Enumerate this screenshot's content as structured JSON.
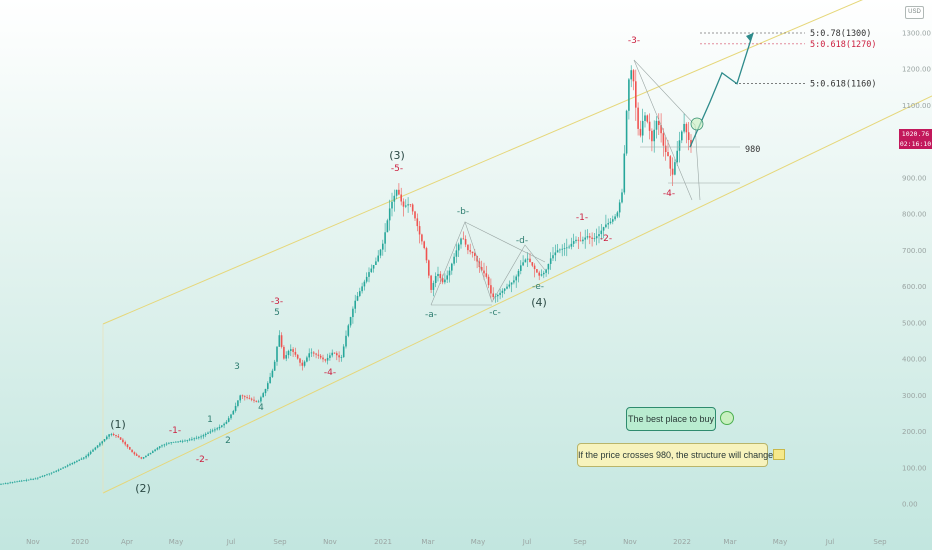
{
  "chart_data": {
    "type": "candlestick",
    "currency_badge": "USD",
    "y_axis": {
      "ticks": [
        "1300.00",
        "1200.00",
        "1100.00",
        "1000.00",
        "900.00",
        "800.00",
        "700.00",
        "600.00",
        "500.00",
        "400.00",
        "300.00",
        "200.00",
        "100.00",
        "0.00"
      ],
      "tick_values": [
        1300,
        1200,
        1100,
        1000,
        900,
        800,
        700,
        600,
        500,
        400,
        300,
        200,
        100,
        0
      ],
      "range": [
        -40,
        1360
      ]
    },
    "x_axis": {
      "ticks": [
        "Nov",
        "2020",
        "Apr",
        "May",
        "Jul",
        "Sep",
        "Nov",
        "2021",
        "Mar",
        "May",
        "Jul",
        "Sep",
        "Nov",
        "2022",
        "Mar",
        "May",
        "Jul",
        "Sep"
      ]
    },
    "current_price": "1020.76",
    "countdown": "02:16:10",
    "price_path": [
      [
        0,
        55
      ],
      [
        35,
        70
      ],
      [
        55,
        90
      ],
      [
        70,
        110
      ],
      [
        85,
        130
      ],
      [
        95,
        155
      ],
      [
        103,
        175
      ],
      [
        110,
        195
      ],
      [
        118,
        185
      ],
      [
        125,
        165
      ],
      [
        133,
        140
      ],
      [
        141,
        125
      ],
      [
        150,
        140
      ],
      [
        160,
        160
      ],
      [
        170,
        170
      ],
      [
        185,
        175
      ],
      [
        200,
        185
      ],
      [
        210,
        200
      ],
      [
        218,
        210
      ],
      [
        226,
        225
      ],
      [
        234,
        260
      ],
      [
        240,
        300
      ],
      [
        250,
        290
      ],
      [
        258,
        280
      ],
      [
        266,
        320
      ],
      [
        274,
        380
      ],
      [
        279,
        470
      ],
      [
        284,
        400
      ],
      [
        290,
        430
      ],
      [
        296,
        410
      ],
      [
        302,
        380
      ],
      [
        310,
        420
      ],
      [
        318,
        410
      ],
      [
        325,
        395
      ],
      [
        333,
        420
      ],
      [
        341,
        400
      ],
      [
        348,
        490
      ],
      [
        355,
        560
      ],
      [
        362,
        600
      ],
      [
        369,
        640
      ],
      [
        376,
        670
      ],
      [
        383,
        720
      ],
      [
        390,
        820
      ],
      [
        397,
        870
      ],
      [
        403,
        820
      ],
      [
        410,
        830
      ],
      [
        416,
        780
      ],
      [
        420,
        740
      ],
      [
        425,
        700
      ],
      [
        431,
        590
      ],
      [
        437,
        640
      ],
      [
        443,
        610
      ],
      [
        449,
        640
      ],
      [
        455,
        690
      ],
      [
        462,
        740
      ],
      [
        468,
        700
      ],
      [
        474,
        690
      ],
      [
        480,
        650
      ],
      [
        486,
        630
      ],
      [
        492,
        570
      ],
      [
        497,
        575
      ],
      [
        503,
        590
      ],
      [
        509,
        605
      ],
      [
        515,
        620
      ],
      [
        521,
        660
      ],
      [
        527,
        680
      ],
      [
        533,
        655
      ],
      [
        539,
        630
      ],
      [
        545,
        640
      ],
      [
        551,
        680
      ],
      [
        557,
        700
      ],
      [
        563,
        705
      ],
      [
        569,
        710
      ],
      [
        575,
        730
      ],
      [
        581,
        725
      ],
      [
        587,
        740
      ],
      [
        593,
        730
      ],
      [
        599,
        745
      ],
      [
        605,
        770
      ],
      [
        611,
        780
      ],
      [
        617,
        800
      ],
      [
        622,
        860
      ],
      [
        625,
        1000
      ],
      [
        628,
        1160
      ],
      [
        631,
        1200
      ],
      [
        634,
        1160
      ],
      [
        637,
        1050
      ],
      [
        640,
        1010
      ],
      [
        644,
        1080
      ],
      [
        648,
        1050
      ],
      [
        652,
        1000
      ],
      [
        656,
        1060
      ],
      [
        660,
        1040
      ],
      [
        664,
        980
      ],
      [
        668,
        960
      ],
      [
        672,
        900
      ],
      [
        676,
        960
      ],
      [
        680,
        1010
      ],
      [
        684,
        1050
      ],
      [
        688,
        1010
      ],
      [
        692,
        980
      ]
    ],
    "wave_labels": {
      "w1_paren": "(1)",
      "w2_paren": "(2)",
      "w3_paren": "(3)",
      "w4_paren": "(4)",
      "m1": "-1-",
      "m2": "-2-",
      "n1": "1",
      "n2": "2",
      "n3": "3",
      "n4": "4",
      "m3": "-3-",
      "n5": "5",
      "m4": "-4-",
      "m5": "-5-",
      "a": "-a-",
      "b": "-b-",
      "c": "-c-",
      "d": "-d-",
      "e": "-e-",
      "m1b": "-1-",
      "m2b": "-2-",
      "m3b": "-3-",
      "m4b": "-4-"
    },
    "fib_levels": [
      {
        "label": "5:0.78(1300)",
        "value": 1300,
        "color": "#333333"
      },
      {
        "label": "5:0.618(1270)",
        "value": 1270,
        "color": "#cc1f3f"
      },
      {
        "label": "5:0.618(1160)",
        "value": 1160,
        "color": "#333333"
      }
    ],
    "support_level": {
      "label": "980",
      "value": 980
    },
    "projection_path": [
      [
        690,
        985
      ],
      [
        710,
        1110
      ],
      [
        722,
        1190
      ],
      [
        737,
        1160
      ],
      [
        753,
        1300
      ]
    ],
    "notes": {
      "buy": "The best place to buy",
      "change": "If the price crosses 980, the structure will change"
    },
    "colors": {
      "up": "#26a69a",
      "down": "#ef5350",
      "channel": "#e6d77a",
      "projection": "#2e8b8b"
    }
  }
}
